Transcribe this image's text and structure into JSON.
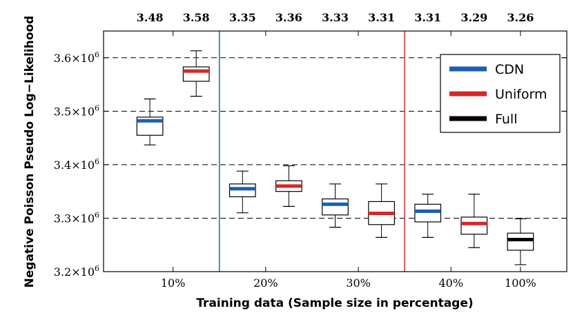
{
  "chart_data": {
    "type": "boxplot",
    "title": "",
    "xlabel": "Training data (Sample size in percentage)",
    "ylabel": "Negative Poisson Pseudo Log−Likelihood",
    "ylim": [
      3.2,
      3.65
    ],
    "y_scale_label": "×10",
    "y_exponent": "6",
    "y_ticks": [
      {
        "value": 3.2,
        "mantissa": "3.2"
      },
      {
        "value": 3.3,
        "mantissa": "3.3"
      },
      {
        "value": 3.4,
        "mantissa": "3.4"
      },
      {
        "value": 3.5,
        "mantissa": "3.5"
      },
      {
        "value": 3.6,
        "mantissa": "3.6"
      }
    ],
    "grid_y": [
      3.3,
      3.4,
      3.5,
      3.6
    ],
    "categories": [
      {
        "label": "10%",
        "x": 1.5
      },
      {
        "label": "20%",
        "x": 3.5
      },
      {
        "label": "30%",
        "x": 5.5
      },
      {
        "label": "40%",
        "x": 7.5
      },
      {
        "label": "100%",
        "x": 9
      }
    ],
    "x_range": [
      0,
      10
    ],
    "separators": [
      {
        "x": 2.5,
        "color": "#1f6fbf"
      },
      {
        "x": 6.5,
        "color": "#e0383b"
      }
    ],
    "top_labels": [
      "3.48",
      "3.58",
      "3.35",
      "3.36",
      "3.33",
      "3.31",
      "3.31",
      "3.29",
      "3.26"
    ],
    "boxes": [
      {
        "x": 1,
        "method": "CDN",
        "whisker_low": 3.437,
        "q1": 3.455,
        "median": 3.482,
        "q3": 3.489,
        "whisker_high": 3.523
      },
      {
        "x": 2,
        "method": "Uniform",
        "whisker_low": 3.528,
        "q1": 3.556,
        "median": 3.575,
        "q3": 3.583,
        "whisker_high": 3.613
      },
      {
        "x": 3,
        "method": "CDN",
        "whisker_low": 3.31,
        "q1": 3.34,
        "median": 3.355,
        "q3": 3.364,
        "whisker_high": 3.388
      },
      {
        "x": 4,
        "method": "Uniform",
        "whisker_low": 3.322,
        "q1": 3.35,
        "median": 3.36,
        "q3": 3.37,
        "whisker_high": 3.398
      },
      {
        "x": 5,
        "method": "CDN",
        "whisker_low": 3.283,
        "q1": 3.306,
        "median": 3.326,
        "q3": 3.336,
        "whisker_high": 3.364
      },
      {
        "x": 6,
        "method": "Uniform",
        "whisker_low": 3.264,
        "q1": 3.288,
        "median": 3.309,
        "q3": 3.331,
        "whisker_high": 3.364
      },
      {
        "x": 7,
        "method": "CDN",
        "whisker_low": 3.264,
        "q1": 3.293,
        "median": 3.313,
        "q3": 3.326,
        "whisker_high": 3.345
      },
      {
        "x": 8,
        "method": "Uniform",
        "whisker_low": 3.245,
        "q1": 3.27,
        "median": 3.29,
        "q3": 3.302,
        "whisker_high": 3.345
      },
      {
        "x": 9,
        "method": "Full",
        "whisker_low": 3.213,
        "q1": 3.24,
        "median": 3.26,
        "q3": 3.272,
        "whisker_high": 3.299
      }
    ],
    "legend": {
      "placement": "top-right",
      "entries": [
        {
          "label": "CDN",
          "color": "#1a5fb4"
        },
        {
          "label": "Uniform",
          "color": "#d62728"
        },
        {
          "label": "Full",
          "color": "#000000"
        }
      ]
    },
    "box_width_units": 0.56
  }
}
